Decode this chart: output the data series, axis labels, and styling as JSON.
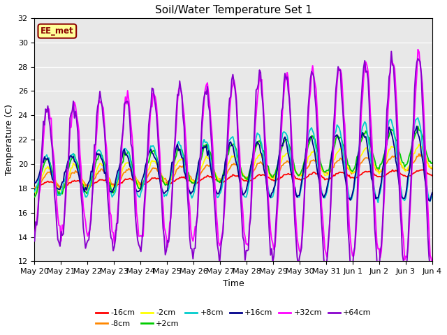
{
  "title": "Soil/Water Temperature Set 1",
  "xlabel": "Time",
  "ylabel": "Temperature (C)",
  "ylim": [
    12,
    32
  ],
  "yticks": [
    12,
    14,
    16,
    18,
    20,
    22,
    24,
    26,
    28,
    30,
    32
  ],
  "date_labels": [
    "May 20",
    "May 21",
    "May 22",
    "May 23",
    "May 24",
    "May 25",
    "May 26",
    "May 27",
    "May 28",
    "May 29",
    "May 30",
    "May 31",
    "Jun 1",
    "Jun 2",
    "Jun 3",
    "Jun 4"
  ],
  "legend_entries": [
    "-16cm",
    "-8cm",
    "-2cm",
    "+2cm",
    "+8cm",
    "+16cm",
    "+32cm",
    "+64cm"
  ],
  "legend_colors": [
    "#ff0000",
    "#ff8800",
    "#ffff00",
    "#00cc00",
    "#00cccc",
    "#00008b",
    "#ff00ff",
    "#8800cc"
  ],
  "watermark": "EE_met",
  "background_color": "#e8e8e8"
}
